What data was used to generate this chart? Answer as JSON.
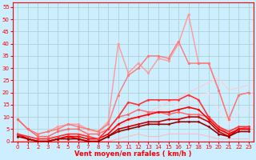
{
  "xlabel": "Vent moyen/en rafales ( km/h )",
  "background_color": "#cceeff",
  "grid_color": "#aacccc",
  "xlim": [
    -0.5,
    23.5
  ],
  "ylim": [
    0,
    57
  ],
  "yticks": [
    0,
    5,
    10,
    15,
    20,
    25,
    30,
    35,
    40,
    45,
    50,
    55
  ],
  "xticks": [
    0,
    1,
    2,
    3,
    4,
    5,
    6,
    7,
    8,
    9,
    10,
    11,
    12,
    13,
    14,
    15,
    16,
    17,
    18,
    19,
    20,
    21,
    22,
    23
  ],
  "lines": [
    {
      "x": [
        0,
        1,
        2,
        3,
        4,
        5,
        6,
        7,
        8,
        9,
        10,
        11,
        12,
        13,
        14,
        15,
        16,
        17,
        18,
        19,
        20,
        21,
        22,
        23
      ],
      "y": [
        0,
        1,
        1,
        2,
        2,
        3,
        3,
        4,
        4,
        5,
        6,
        8,
        10,
        12,
        14,
        16,
        18,
        20,
        22,
        24,
        26,
        21,
        22,
        23
      ],
      "color": "#ffcccc",
      "linewidth": 0.8,
      "marker": null,
      "zorder": 1
    },
    {
      "x": [
        0,
        1,
        2,
        3,
        4,
        5,
        6,
        7,
        8,
        9,
        10,
        11,
        12,
        13,
        14,
        15,
        16,
        17,
        18,
        19,
        20,
        21,
        22,
        23
      ],
      "y": [
        0,
        1,
        1,
        1,
        2,
        2,
        3,
        3,
        3,
        4,
        5,
        6,
        8,
        10,
        12,
        14,
        15,
        17,
        18,
        20,
        13,
        7,
        12,
        13
      ],
      "color": "#ffdddd",
      "linewidth": 0.8,
      "marker": null,
      "zorder": 1
    },
    {
      "x": [
        0,
        1,
        2,
        3,
        4,
        5,
        6,
        7,
        8,
        9,
        10,
        11,
        12,
        13,
        14,
        15,
        16,
        17,
        18,
        19,
        20,
        21,
        22,
        23
      ],
      "y": [
        9,
        5,
        3,
        4,
        6,
        7,
        7,
        5,
        4,
        8,
        40,
        28,
        32,
        28,
        34,
        33,
        40,
        52,
        32,
        32,
        21,
        9,
        19,
        20
      ],
      "color": "#ff9999",
      "linewidth": 1.0,
      "marker": "o",
      "markersize": 2,
      "zorder": 2
    },
    {
      "x": [
        0,
        1,
        2,
        3,
        4,
        5,
        6,
        7,
        8,
        9,
        10,
        11,
        12,
        13,
        14,
        15,
        16,
        17,
        18,
        19,
        20,
        21,
        22,
        23
      ],
      "y": [
        9,
        5,
        3,
        4,
        5,
        7,
        6,
        5,
        4,
        7,
        19,
        27,
        30,
        35,
        35,
        34,
        41,
        32,
        32,
        32,
        21,
        9,
        19,
        20
      ],
      "color": "#ff7777",
      "linewidth": 1.0,
      "marker": "o",
      "markersize": 2,
      "zorder": 2
    },
    {
      "x": [
        0,
        1,
        2,
        3,
        4,
        5,
        6,
        7,
        8,
        9,
        10,
        11,
        12,
        13,
        14,
        15,
        16,
        17,
        18,
        19,
        20,
        21,
        22,
        23
      ],
      "y": [
        3,
        1,
        0,
        0,
        1,
        2,
        1,
        0,
        0,
        2,
        5,
        6,
        7,
        8,
        8,
        9,
        9,
        10,
        10,
        8,
        4,
        2,
        5,
        5
      ],
      "color": "#cc0000",
      "linewidth": 1.2,
      "marker": "D",
      "markersize": 1.5,
      "zorder": 4
    },
    {
      "x": [
        0,
        1,
        2,
        3,
        4,
        5,
        6,
        7,
        8,
        9,
        10,
        11,
        12,
        13,
        14,
        15,
        16,
        17,
        18,
        19,
        20,
        21,
        22,
        23
      ],
      "y": [
        3,
        1,
        0,
        0,
        1,
        2,
        2,
        1,
        1,
        3,
        7,
        9,
        10,
        11,
        12,
        12,
        13,
        14,
        13,
        9,
        5,
        3,
        5,
        5
      ],
      "color": "#ff0000",
      "linewidth": 1.2,
      "marker": "D",
      "markersize": 1.5,
      "zorder": 4
    },
    {
      "x": [
        0,
        1,
        2,
        3,
        4,
        5,
        6,
        7,
        8,
        9,
        10,
        11,
        12,
        13,
        14,
        15,
        16,
        17,
        18,
        19,
        20,
        21,
        22,
        23
      ],
      "y": [
        3,
        2,
        1,
        1,
        2,
        3,
        3,
        2,
        1,
        5,
        10,
        16,
        15,
        17,
        17,
        17,
        17,
        19,
        17,
        10,
        6,
        4,
        6,
        6
      ],
      "color": "#ff3333",
      "linewidth": 1.2,
      "marker": "D",
      "markersize": 1.5,
      "zorder": 4
    },
    {
      "x": [
        0,
        1,
        2,
        3,
        4,
        5,
        6,
        7,
        8,
        9,
        10,
        11,
        12,
        13,
        14,
        15,
        16,
        17,
        18,
        19,
        20,
        21,
        22,
        23
      ],
      "y": [
        2,
        1,
        0,
        0,
        1,
        1,
        1,
        0,
        0,
        2,
        4,
        5,
        6,
        7,
        7,
        7,
        8,
        8,
        8,
        6,
        3,
        2,
        4,
        4
      ],
      "color": "#990000",
      "linewidth": 1.2,
      "marker": "D",
      "markersize": 1.5,
      "zorder": 4
    },
    {
      "x": [
        0,
        1,
        2,
        3,
        4,
        5,
        6,
        7,
        8,
        9,
        10,
        11,
        12,
        13,
        14,
        15,
        16,
        17,
        18,
        19,
        20,
        21,
        22,
        23
      ],
      "y": [
        9,
        5,
        2,
        2,
        4,
        5,
        5,
        3,
        3,
        5,
        10,
        11,
        13,
        12,
        12,
        11,
        12,
        11,
        11,
        10,
        6,
        3,
        5,
        6
      ],
      "color": "#ff6666",
      "linewidth": 1.0,
      "marker": "o",
      "markersize": 2,
      "zorder": 3
    },
    {
      "x": [
        0,
        1,
        2,
        3,
        4,
        5,
        6,
        7,
        8,
        9,
        10,
        11,
        12,
        13,
        14,
        15,
        16,
        17,
        18,
        19,
        20,
        21,
        22,
        23
      ],
      "y": [
        0,
        0,
        0,
        0,
        0,
        0,
        0,
        0,
        0,
        0,
        1,
        2,
        3,
        2,
        2,
        3,
        3,
        3,
        3,
        2,
        1,
        1,
        1,
        1
      ],
      "color": "#ffbbbb",
      "linewidth": 0.8,
      "marker": null,
      "zorder": 1
    }
  ],
  "xlabel_color": "#ff0000",
  "xlabel_fontsize": 6,
  "tick_fontsize": 5,
  "tick_color": "#ff0000",
  "axis_color": "#ff0000"
}
